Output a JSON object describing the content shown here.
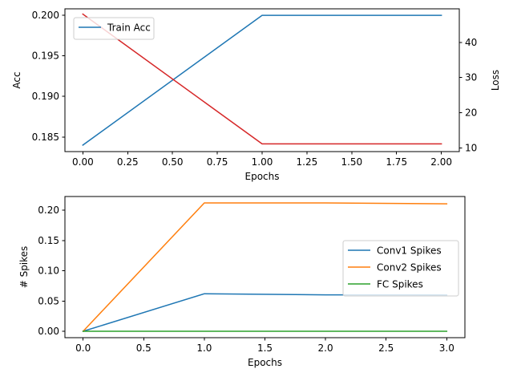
{
  "chart_data": [
    {
      "type": "line",
      "xlabel": "Epochs",
      "ylabel": "Acc",
      "y2label": "Loss",
      "xlim": [
        -0.1,
        2.1
      ],
      "ylim": [
        0.1832,
        0.2008
      ],
      "y2lim": [
        9.0,
        49.5
      ],
      "xticks": [
        "0.00",
        "0.25",
        "0.50",
        "0.75",
        "1.00",
        "1.25",
        "1.50",
        "1.75",
        "2.00"
      ],
      "yticks": [
        "0.185",
        "0.190",
        "0.195",
        "0.200"
      ],
      "y2ticks": [
        "10",
        "20",
        "30",
        "40"
      ],
      "legend_position": "upper-left",
      "series": [
        {
          "name": "Train Acc",
          "axis": "left",
          "color": "#1f77b4",
          "x": [
            0,
            1,
            2
          ],
          "values": [
            0.184,
            0.2,
            0.2
          ],
          "in_legend": true
        },
        {
          "axis": "right",
          "color": "#d62728",
          "x": [
            0,
            1,
            2
          ],
          "values": [
            48,
            11.2,
            11.2
          ],
          "in_legend": false
        }
      ]
    },
    {
      "type": "line",
      "xlabel": "Epochs",
      "ylabel": "# Spikes",
      "xlim": [
        -0.15,
        3.15
      ],
      "ylim": [
        -0.0106,
        0.2226
      ],
      "xticks": [
        "0.0",
        "0.5",
        "1.0",
        "1.5",
        "2.0",
        "2.5",
        "3.0"
      ],
      "yticks": [
        "0.00",
        "0.05",
        "0.10",
        "0.15",
        "0.20"
      ],
      "legend_position": "center-right",
      "series": [
        {
          "name": "Conv1 Spikes",
          "color": "#1f77b4",
          "x": [
            0,
            1,
            2,
            3
          ],
          "values": [
            0,
            0.062,
            0.0602,
            0.06
          ]
        },
        {
          "name": "Conv2 Spikes",
          "color": "#ff7f0e",
          "x": [
            0,
            1,
            2,
            3
          ],
          "values": [
            0,
            0.212,
            0.212,
            0.2105
          ]
        },
        {
          "name": "FC Spikes",
          "color": "#2ca02c",
          "x": [
            0,
            1,
            2,
            3
          ],
          "values": [
            0,
            0,
            0,
            0
          ]
        }
      ]
    }
  ]
}
